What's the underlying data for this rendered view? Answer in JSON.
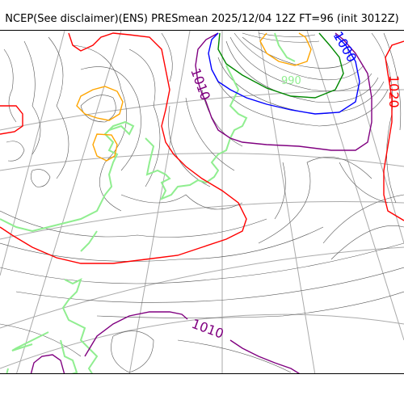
{
  "title": "NCEP(See disclaimer)(ENS) PRESmean 2025/12/04 12Z FT=96 (init 3012Z)",
  "colors": {
    "background": "#ffffff",
    "isobar": "#555555",
    "graticule": "#aaaaaa",
    "coastline": "#90ee90",
    "contour_1020": "#ff0000",
    "contour_1010": "#800080",
    "contour_1000": "#0000ff",
    "contour_green": "#008800",
    "contour_orange": "#ffa500"
  },
  "contour_labels": {
    "label_1000": "1000",
    "label_1010_top": "1010",
    "label_1020": "1020",
    "label_1010_bottom": "1010",
    "label_990": "990"
  }
}
